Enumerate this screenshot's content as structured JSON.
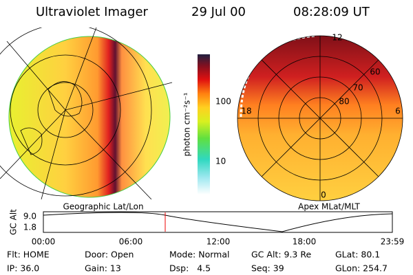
{
  "header": {
    "title": "Ultraviolet Imager",
    "date": "29 Jul 00",
    "time": "08:28:09 UT"
  },
  "colorbar": {
    "label": "photon cm⁻²s⁻¹",
    "ticks": [
      "100",
      "10"
    ]
  },
  "left_image": {
    "label": "Geographic Lat/Lon"
  },
  "right_image": {
    "label": "Apex MLat/MLT",
    "grid_labels": [
      "12",
      "60",
      "70",
      "80",
      "18",
      "6",
      "0"
    ]
  },
  "altitude_plot": {
    "axis_label": "GC Alt",
    "y_ticks": [
      "9.0",
      "1.8"
    ],
    "x_ticks": [
      "00:00",
      "06:00",
      "12:00",
      "18:00",
      "23:59"
    ]
  },
  "info": [
    [
      "Flt: HOME",
      "Door: Open",
      "Mode: Normal",
      "GC Alt: 9.3 Re",
      "GLat: 80.1"
    ],
    [
      "IP: 36.0",
      "Gain: 13",
      "Dsp:   4.5",
      "Seq: 39",
      "GLon: 254.7"
    ]
  ]
}
